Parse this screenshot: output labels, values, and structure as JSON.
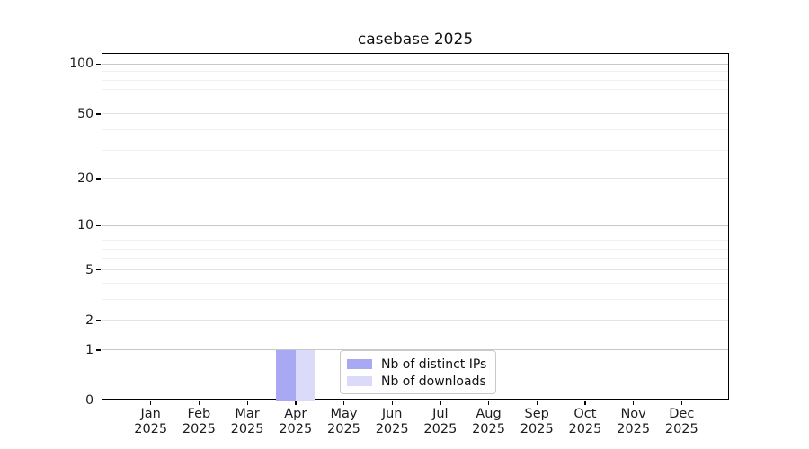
{
  "chart_data": {
    "type": "bar",
    "title": "casebase 2025",
    "xlabel": "",
    "ylabel": "",
    "categories": [
      "Jan",
      "Feb",
      "Mar",
      "Apr",
      "May",
      "Jun",
      "Jul",
      "Aug",
      "Sep",
      "Oct",
      "Nov",
      "Dec"
    ],
    "year_label": "2025",
    "series": [
      {
        "name": "Nb of distinct IPs",
        "color": "#a8a8f3",
        "values": [
          0,
          0,
          0,
          1,
          0,
          0,
          0,
          0,
          0,
          0,
          0,
          0
        ]
      },
      {
        "name": "Nb of downloads",
        "color": "#dbdbf9",
        "values": [
          0,
          0,
          0,
          1,
          0,
          0,
          0,
          0,
          0,
          0,
          0,
          0
        ]
      }
    ],
    "yscale": "log1p",
    "ylim": [
      0,
      115
    ],
    "ytick_values": [
      0,
      1,
      2,
      5,
      10,
      20,
      50,
      100
    ],
    "ytick_labels": [
      "0",
      "1",
      "2",
      "5",
      "10",
      "20",
      "50",
      "100"
    ],
    "grid": {
      "major_values": [
        1,
        10,
        100
      ],
      "mid_values": [
        2,
        5,
        20,
        50
      ],
      "minor_values": [
        3,
        4,
        6,
        7,
        8,
        9,
        30,
        40,
        60,
        70,
        80,
        90
      ],
      "major_color": "#c8c8c8",
      "mid_color": "#e3e3e3",
      "minor_color": "#f0f0f0"
    },
    "legend": {
      "position": "bottom-center",
      "border_color": "#c9c9c9",
      "background": "#ffffff"
    },
    "colors": {
      "axis": "#000000",
      "text": "#1c1c1c",
      "background": "#ffffff"
    }
  }
}
